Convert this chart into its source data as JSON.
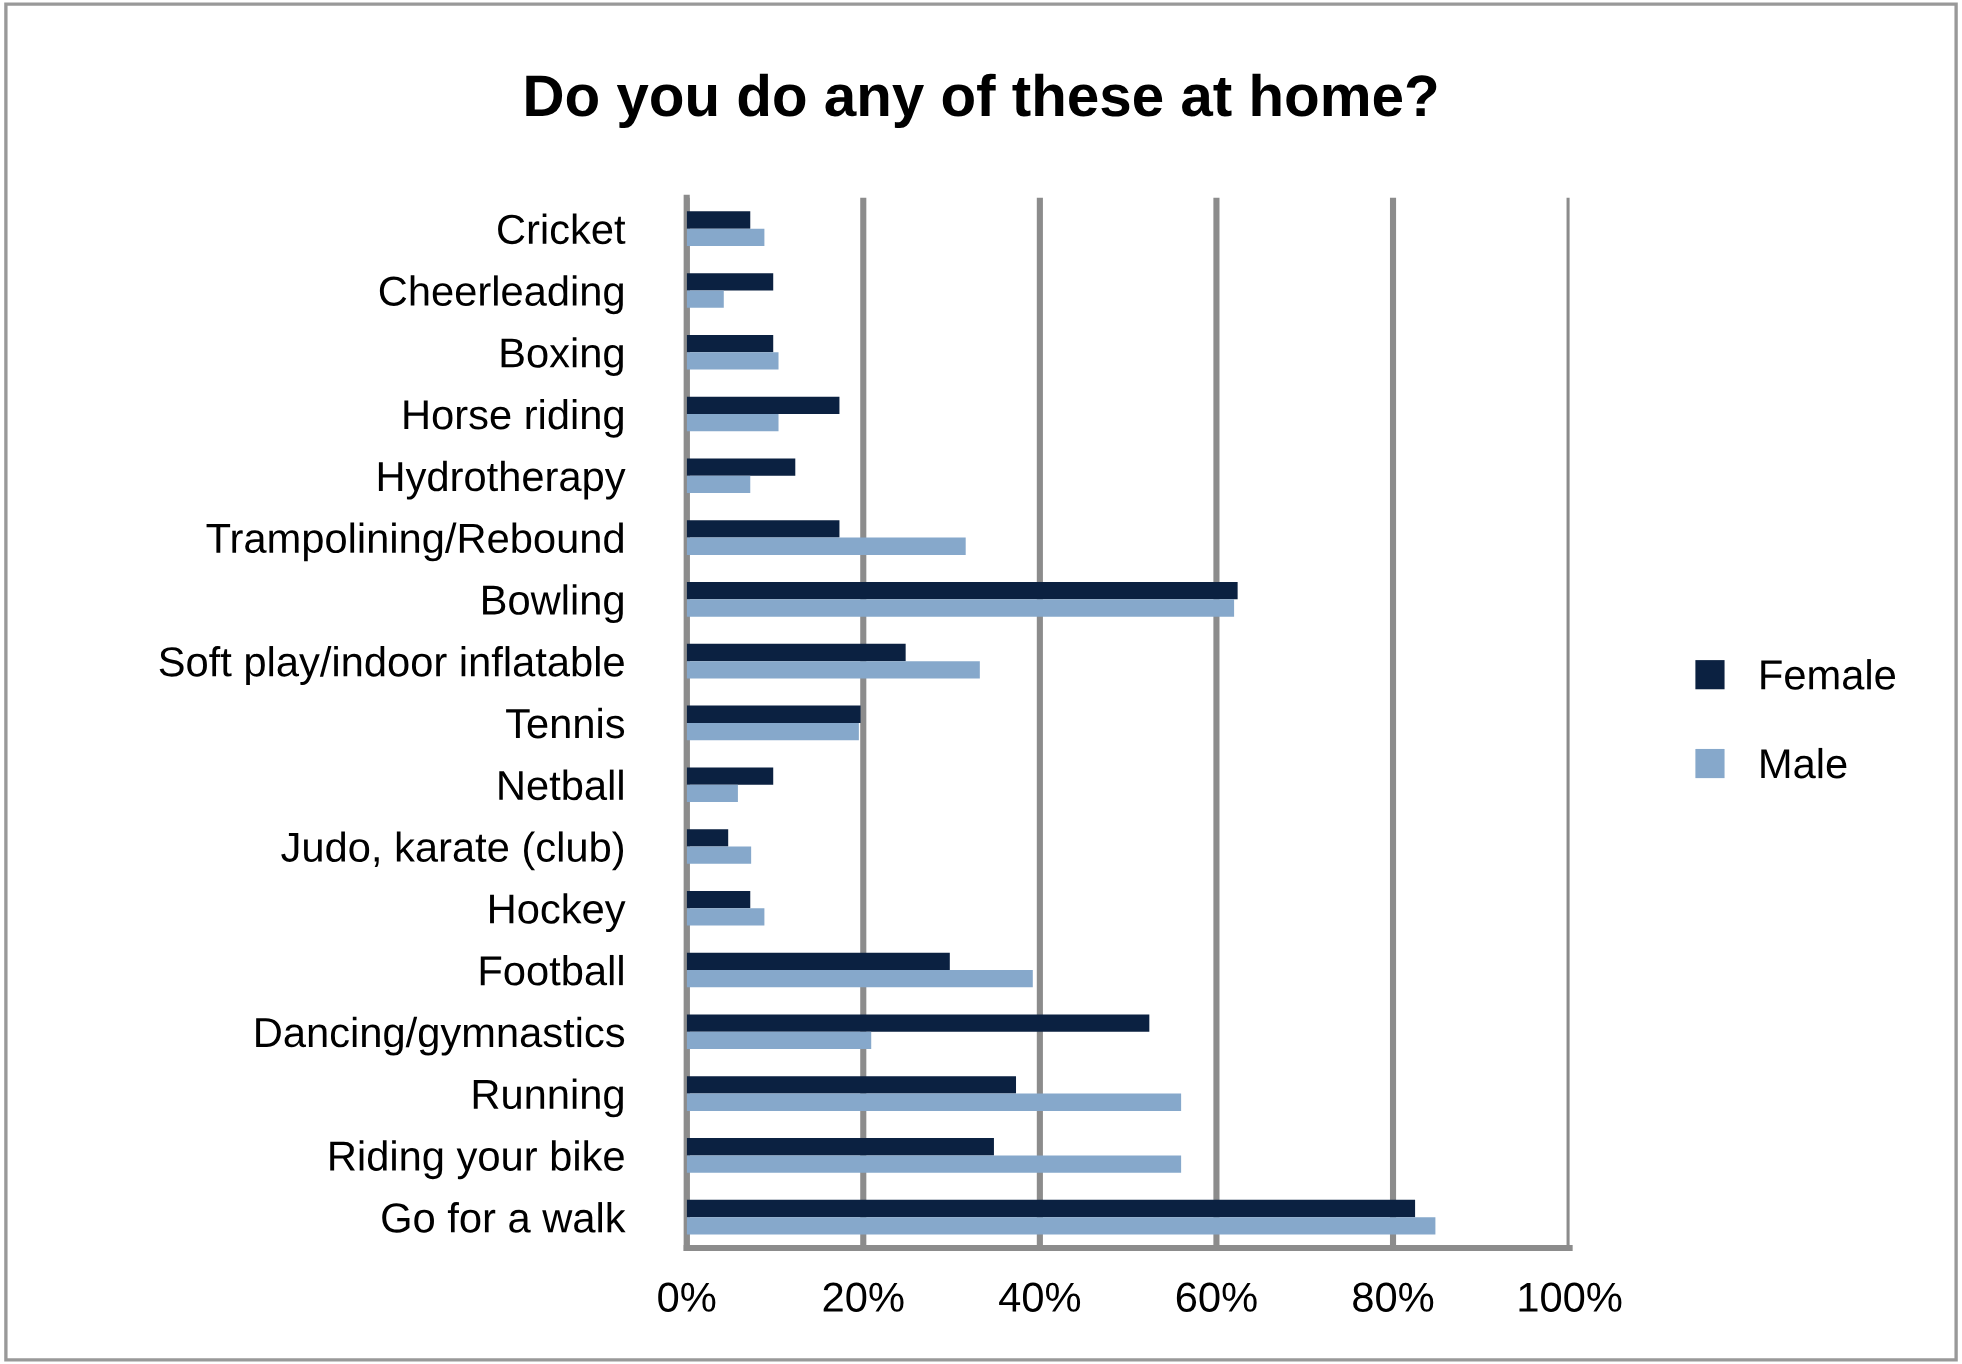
{
  "chart_data": {
    "type": "bar",
    "orientation": "horizontal",
    "title": "Do you do any of these at home?",
    "categories": [
      "Cricket",
      "Cheerleading",
      "Boxing",
      "Horse riding",
      "Hydrotherapy",
      "Trampolining/Rebound",
      "Bowling",
      "Soft play/indoor inflatable",
      "Tennis",
      "Netball",
      "Judo, karate (club)",
      "Hockey",
      "Football",
      "Dancing/gymnastics",
      "Running",
      "Riding your bike",
      "Go for a walk"
    ],
    "series": [
      {
        "name": "Female",
        "color": "#0b2141",
        "values": [
          7.2,
          9.8,
          9.8,
          17.3,
          12.3,
          17.3,
          62.4,
          24.8,
          19.7,
          9.8,
          4.7,
          7.2,
          29.8,
          52.4,
          37.3,
          34.8,
          82.5
        ]
      },
      {
        "name": "Male",
        "color": "#86a8cb",
        "values": [
          8.8,
          4.2,
          10.4,
          10.4,
          7.2,
          31.6,
          62.0,
          33.2,
          19.5,
          5.8,
          7.3,
          8.8,
          39.2,
          20.9,
          56.0,
          56.0,
          84.8
        ]
      }
    ],
    "xlim": [
      0,
      100
    ],
    "xticks": [
      {
        "value": 0,
        "label": "0%"
      },
      {
        "value": 20,
        "label": "20%"
      },
      {
        "value": 40,
        "label": "40%"
      },
      {
        "value": 60,
        "label": "60%"
      },
      {
        "value": 80,
        "label": "80%"
      },
      {
        "value": 100,
        "label": "100%"
      }
    ],
    "grid": "x",
    "legend": "right"
  }
}
